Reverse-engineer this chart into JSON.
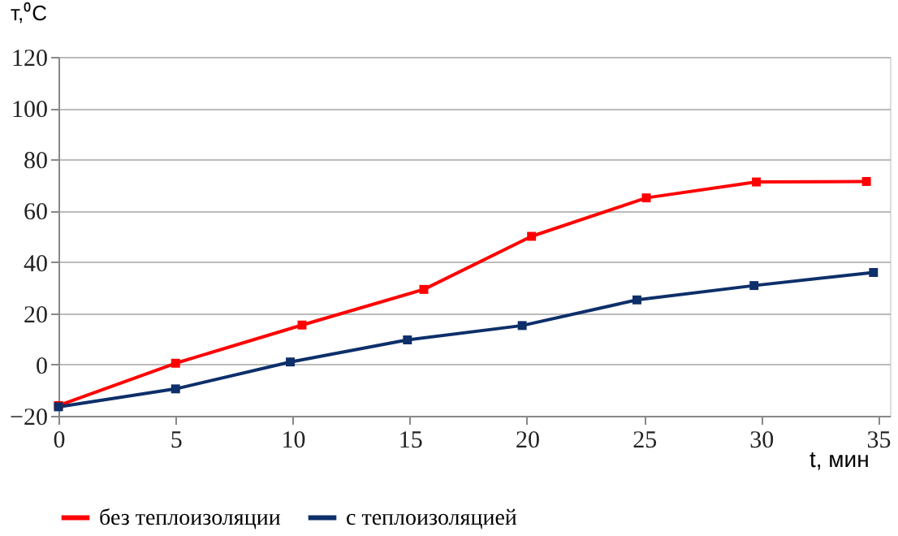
{
  "chart_data": {
    "type": "line",
    "xlabel": "t, мин",
    "ylabel": "т,⁰С",
    "xlim": [
      0,
      35.5
    ],
    "xticks": [
      0,
      5,
      10,
      15,
      20,
      25,
      30,
      35
    ],
    "ylim": [
      -20,
      120
    ],
    "yticks": [
      -20,
      0,
      20,
      40,
      60,
      80,
      100,
      120
    ],
    "grid": "y",
    "legend": "bottom",
    "marker": "square",
    "line_style": "solid",
    "series": [
      {
        "name": "без теплоизоляции",
        "color": "#ff0000",
        "x": [
          0,
          5,
          10.4,
          15.6,
          20.2,
          25.1,
          29.8,
          34.5
        ],
        "values": [
          -16,
          0.5,
          15.4,
          29.3,
          50,
          65,
          71.2,
          71.4
        ]
      },
      {
        "name": "с теплоизоляцией",
        "color": "#0d2f6a",
        "x": [
          0,
          5,
          9.9,
          14.9,
          19.8,
          24.7,
          29.7,
          34.8
        ],
        "values": [
          -16.5,
          -9.5,
          1,
          9.6,
          15.2,
          25.2,
          30.8,
          35.9
        ]
      }
    ]
  }
}
